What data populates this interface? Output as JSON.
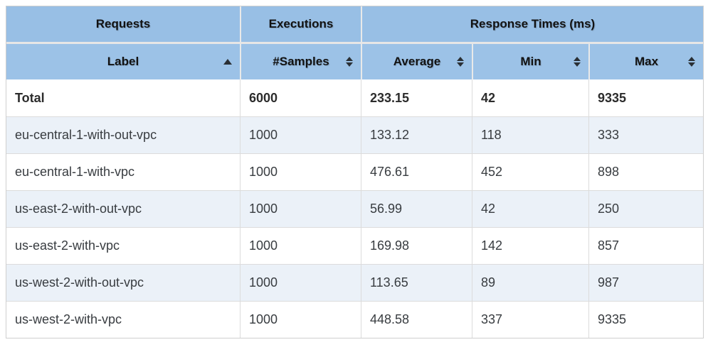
{
  "table": {
    "header_groups": [
      {
        "label": "Requests"
      },
      {
        "label": "Executions"
      },
      {
        "label": "Response Times (ms)"
      }
    ],
    "columns": [
      {
        "label": "Label",
        "sort": "asc"
      },
      {
        "label": "#Samples",
        "sort": "none"
      },
      {
        "label": "Average",
        "sort": "none"
      },
      {
        "label": "Min",
        "sort": "none"
      },
      {
        "label": "Max",
        "sort": "none"
      }
    ],
    "rows": [
      {
        "label": "Total",
        "samples": "6000",
        "average": "233.15",
        "min": "42",
        "max": "9335"
      },
      {
        "label": "eu-central-1-with-out-vpc",
        "samples": "1000",
        "average": "133.12",
        "min": "118",
        "max": "333"
      },
      {
        "label": "eu-central-1-with-vpc",
        "samples": "1000",
        "average": "476.61",
        "min": "452",
        "max": "898"
      },
      {
        "label": "us-east-2-with-out-vpc",
        "samples": "1000",
        "average": "56.99",
        "min": "42",
        "max": "250"
      },
      {
        "label": "us-east-2-with-vpc",
        "samples": "1000",
        "average": "169.98",
        "min": "142",
        "max": "857"
      },
      {
        "label": "us-west-2-with-out-vpc",
        "samples": "1000",
        "average": "113.65",
        "min": "89",
        "max": "987"
      },
      {
        "label": "us-west-2-with-vpc",
        "samples": "1000",
        "average": "448.58",
        "min": "337",
        "max": "9335"
      }
    ]
  },
  "colors": {
    "header_blue": "#9cc2e7",
    "header_blue_top": "#98bfe5",
    "row_stripe": "#ebf1f8",
    "border_gray": "#dcdcdc",
    "sort_icon": "#2a2f35"
  }
}
